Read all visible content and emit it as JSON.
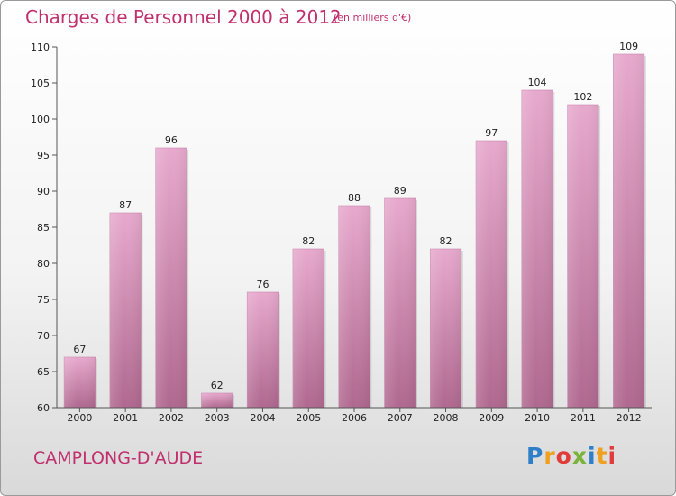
{
  "header": {
    "title": "Charges de Personnel 2000 à 2012",
    "subtitle": "(en milliers d'€)"
  },
  "footer": {
    "commune": "CAMPLONG-D'AUDE",
    "logo_letters": [
      "P",
      "r",
      "o",
      "x",
      "i",
      "t",
      "i"
    ],
    "logo_colors": [
      "#2f7fc8",
      "#f0a020",
      "#e03c3c",
      "#7ab33a",
      "#2f7fc8",
      "#f0a020",
      "#e03c3c"
    ]
  },
  "chart_data": {
    "type": "bar",
    "title": "Charges de Personnel 2000 à 2012",
    "subtitle": "(en milliers d'€)",
    "categories": [
      "2000",
      "2001",
      "2002",
      "2003",
      "2004",
      "2005",
      "2006",
      "2007",
      "2008",
      "2009",
      "2010",
      "2011",
      "2012"
    ],
    "values": [
      67,
      87,
      96,
      62,
      76,
      82,
      88,
      89,
      82,
      97,
      104,
      102,
      109
    ],
    "ylim": [
      60,
      110
    ],
    "yticks": [
      60,
      65,
      70,
      75,
      80,
      85,
      90,
      95,
      100,
      105,
      110
    ],
    "bar_color": "#d98fba",
    "grid": false,
    "legend": false
  }
}
